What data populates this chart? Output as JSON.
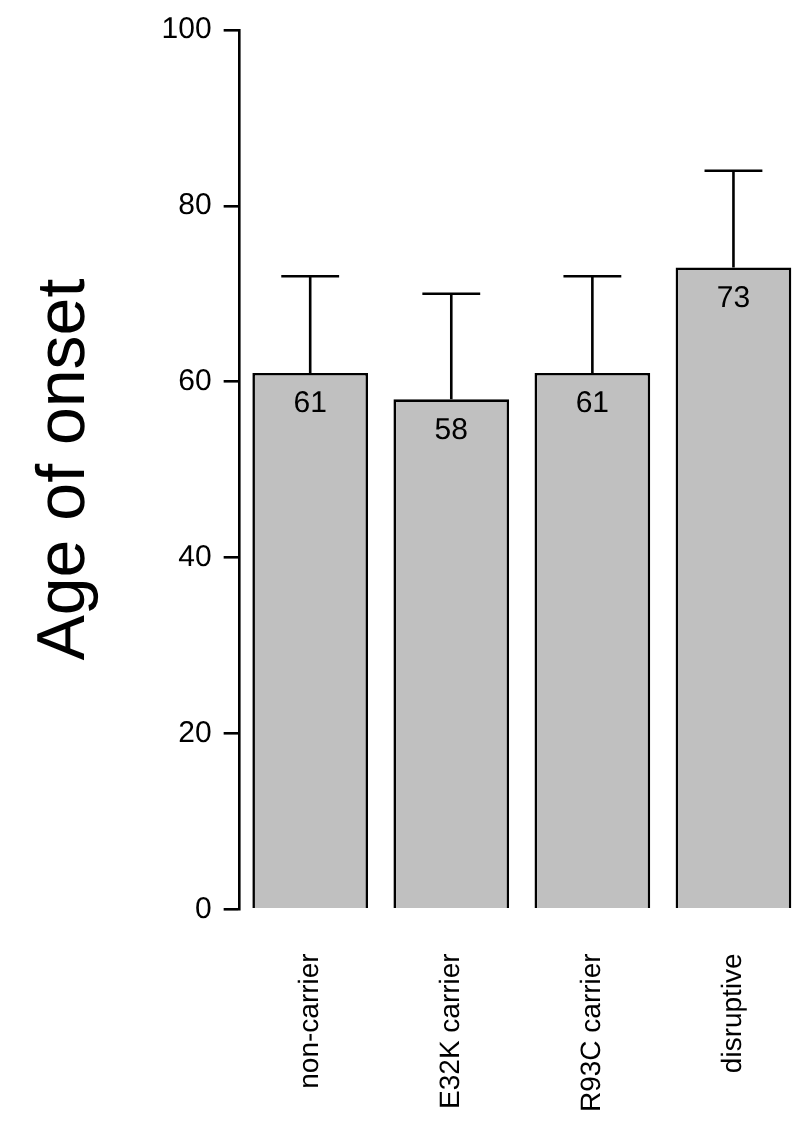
{
  "chart_data": {
    "type": "bar",
    "ylabel": "Age of onset",
    "categories": [
      "non-carrier",
      "E32K carrier",
      "R93C carrier",
      "disruptive"
    ],
    "values": [
      61,
      58,
      61,
      73
    ],
    "errors": [
      11,
      12,
      11,
      11
    ],
    "color": "#c0c0c0",
    "ylim": [
      0,
      100
    ],
    "yticks": [
      0,
      20,
      40,
      60,
      80,
      100
    ],
    "data_labels": true,
    "grid": false,
    "legend": false
  }
}
